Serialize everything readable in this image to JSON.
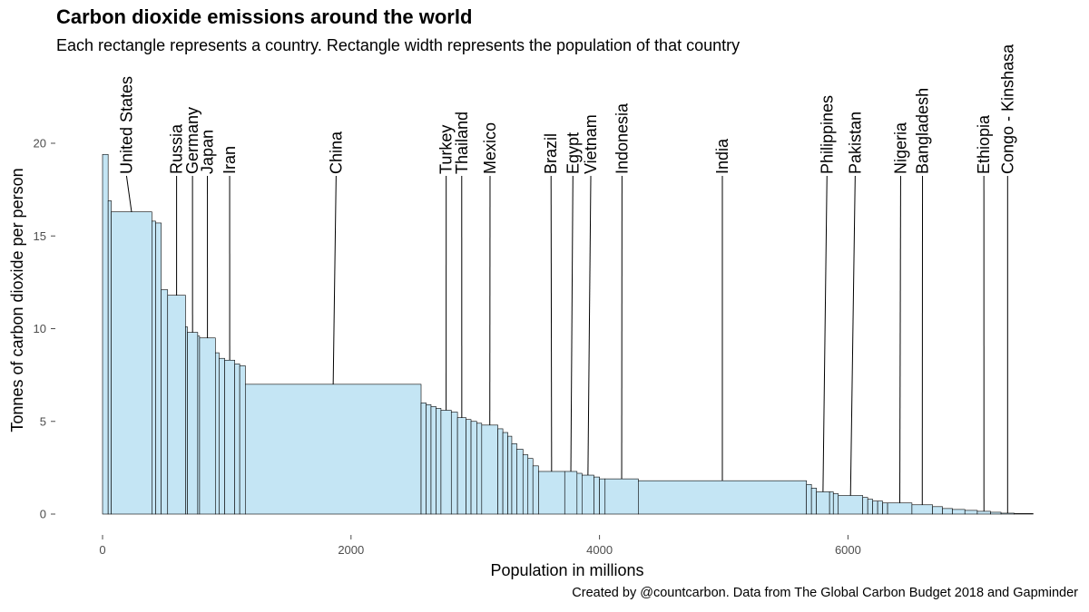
{
  "chart_data": {
    "type": "bar",
    "title": "Carbon dioxide emissions around the world",
    "subtitle": "Each rectangle represents a country. Rectangle width represents the population of that country",
    "caption": "Created by @countcarbon. Data from The Global Carbon Budget 2018 and Gapminder",
    "xlabel": "Population in millions",
    "ylabel": "Tonnes of carbon dioxide per person",
    "xlim": [
      0,
      7600
    ],
    "ylim": [
      0,
      20
    ],
    "x_ticks": [
      0,
      2000,
      4000,
      6000
    ],
    "y_ticks": [
      0,
      5,
      10,
      15,
      20
    ],
    "x_tick_labels": [
      "0",
      "2000",
      "4000",
      "6000"
    ],
    "y_tick_labels": [
      "0",
      "5",
      "10",
      "15",
      "20"
    ],
    "grid": false,
    "legend": "none",
    "bars": [
      {
        "start": 0,
        "width": 45,
        "value": 19.4
      },
      {
        "start": 45,
        "width": 25,
        "value": 16.9
      },
      {
        "start": 70,
        "width": 327,
        "value": 16.3,
        "label": "United States",
        "label_x": 193
      },
      {
        "start": 397,
        "width": 30,
        "value": 15.8
      },
      {
        "start": 427,
        "width": 45,
        "value": 15.7
      },
      {
        "start": 472,
        "width": 52,
        "value": 12.1
      },
      {
        "start": 524,
        "width": 144,
        "value": 11.8,
        "label": "Russia",
        "label_x": 596
      },
      {
        "start": 668,
        "width": 15,
        "value": 10.1
      },
      {
        "start": 683,
        "width": 83,
        "value": 9.8,
        "label": "Germany",
        "label_x": 724
      },
      {
        "start": 766,
        "width": 15,
        "value": 9.6
      },
      {
        "start": 781,
        "width": 127,
        "value": 9.5,
        "label": "Japan",
        "label_x": 844
      },
      {
        "start": 908,
        "width": 30,
        "value": 8.7
      },
      {
        "start": 938,
        "width": 45,
        "value": 8.4
      },
      {
        "start": 983,
        "width": 81,
        "value": 8.3,
        "label": "Iran",
        "label_x": 1023
      },
      {
        "start": 1064,
        "width": 40,
        "value": 8.1
      },
      {
        "start": 1104,
        "width": 45,
        "value": 8.0
      },
      {
        "start": 1149,
        "width": 1415,
        "value": 7.0,
        "label": "China",
        "label_x": 1880
      },
      {
        "start": 2564,
        "width": 40,
        "value": 6.0
      },
      {
        "start": 2604,
        "width": 40,
        "value": 5.9
      },
      {
        "start": 2644,
        "width": 40,
        "value": 5.8
      },
      {
        "start": 2684,
        "width": 40,
        "value": 5.7
      },
      {
        "start": 2724,
        "width": 83,
        "value": 5.6,
        "label": "Turkey",
        "label_x": 2766
      },
      {
        "start": 2807,
        "width": 50,
        "value": 5.5
      },
      {
        "start": 2857,
        "width": 69,
        "value": 5.2,
        "label": "Thailand",
        "label_x": 2891
      },
      {
        "start": 2926,
        "width": 40,
        "value": 5.1
      },
      {
        "start": 2966,
        "width": 46,
        "value": 5.0
      },
      {
        "start": 3012,
        "width": 40,
        "value": 4.9
      },
      {
        "start": 3052,
        "width": 130,
        "value": 4.8,
        "label": "Mexico",
        "label_x": 3119
      },
      {
        "start": 3182,
        "width": 40,
        "value": 4.6
      },
      {
        "start": 3222,
        "width": 40,
        "value": 4.4
      },
      {
        "start": 3262,
        "width": 32,
        "value": 4.2
      },
      {
        "start": 3294,
        "width": 40,
        "value": 3.8
      },
      {
        "start": 3334,
        "width": 50,
        "value": 3.5
      },
      {
        "start": 3384,
        "width": 40,
        "value": 3.2
      },
      {
        "start": 3424,
        "width": 40,
        "value": 3.0
      },
      {
        "start": 3464,
        "width": 45,
        "value": 2.6
      },
      {
        "start": 3509,
        "width": 211,
        "value": 2.3,
        "label": "Brazil",
        "label_x": 3610
      },
      {
        "start": 3720,
        "width": 99,
        "value": 2.3,
        "label": "Egypt",
        "label_x": 3786
      },
      {
        "start": 3819,
        "width": 40,
        "value": 2.2
      },
      {
        "start": 3859,
        "width": 96,
        "value": 2.1,
        "label": "Vietnam",
        "label_x": 3930
      },
      {
        "start": 3955,
        "width": 45,
        "value": 2.0
      },
      {
        "start": 4000,
        "width": 45,
        "value": 1.9
      },
      {
        "start": 4045,
        "width": 267,
        "value": 1.9,
        "label": "Indonesia",
        "label_x": 4181
      },
      {
        "start": 4312,
        "width": 1354,
        "value": 1.8,
        "label": "India",
        "label_x": 4989
      },
      {
        "start": 5666,
        "width": 40,
        "value": 1.6
      },
      {
        "start": 5706,
        "width": 40,
        "value": 1.4
      },
      {
        "start": 5746,
        "width": 106,
        "value": 1.2,
        "label": "Philippines",
        "label_x": 5831
      },
      {
        "start": 5852,
        "width": 30,
        "value": 1.2
      },
      {
        "start": 5882,
        "width": 40,
        "value": 1.1
      },
      {
        "start": 5922,
        "width": 197,
        "value": 1.0,
        "label": "Pakistan",
        "label_x": 6058
      },
      {
        "start": 6119,
        "width": 40,
        "value": 0.9
      },
      {
        "start": 6159,
        "width": 40,
        "value": 0.8
      },
      {
        "start": 6199,
        "width": 40,
        "value": 0.7
      },
      {
        "start": 6239,
        "width": 40,
        "value": 0.7
      },
      {
        "start": 6279,
        "width": 40,
        "value": 0.6
      },
      {
        "start": 6319,
        "width": 196,
        "value": 0.6,
        "label": "Nigeria",
        "label_x": 6424
      },
      {
        "start": 6515,
        "width": 166,
        "value": 0.5,
        "label": "Bangladesh",
        "label_x": 6600
      },
      {
        "start": 6681,
        "width": 80,
        "value": 0.4
      },
      {
        "start": 6761,
        "width": 80,
        "value": 0.3
      },
      {
        "start": 6841,
        "width": 100,
        "value": 0.25
      },
      {
        "start": 6941,
        "width": 100,
        "value": 0.2
      },
      {
        "start": 7041,
        "width": 107,
        "value": 0.15,
        "label": "Ethiopia",
        "label_x": 7094
      },
      {
        "start": 7148,
        "width": 84,
        "value": 0.1
      },
      {
        "start": 7232,
        "width": 106,
        "value": 0.05,
        "label": "Congo - Kinshasa",
        "label_x": 7285
      },
      {
        "start": 7338,
        "width": 152,
        "value": 0.03
      }
    ]
  }
}
